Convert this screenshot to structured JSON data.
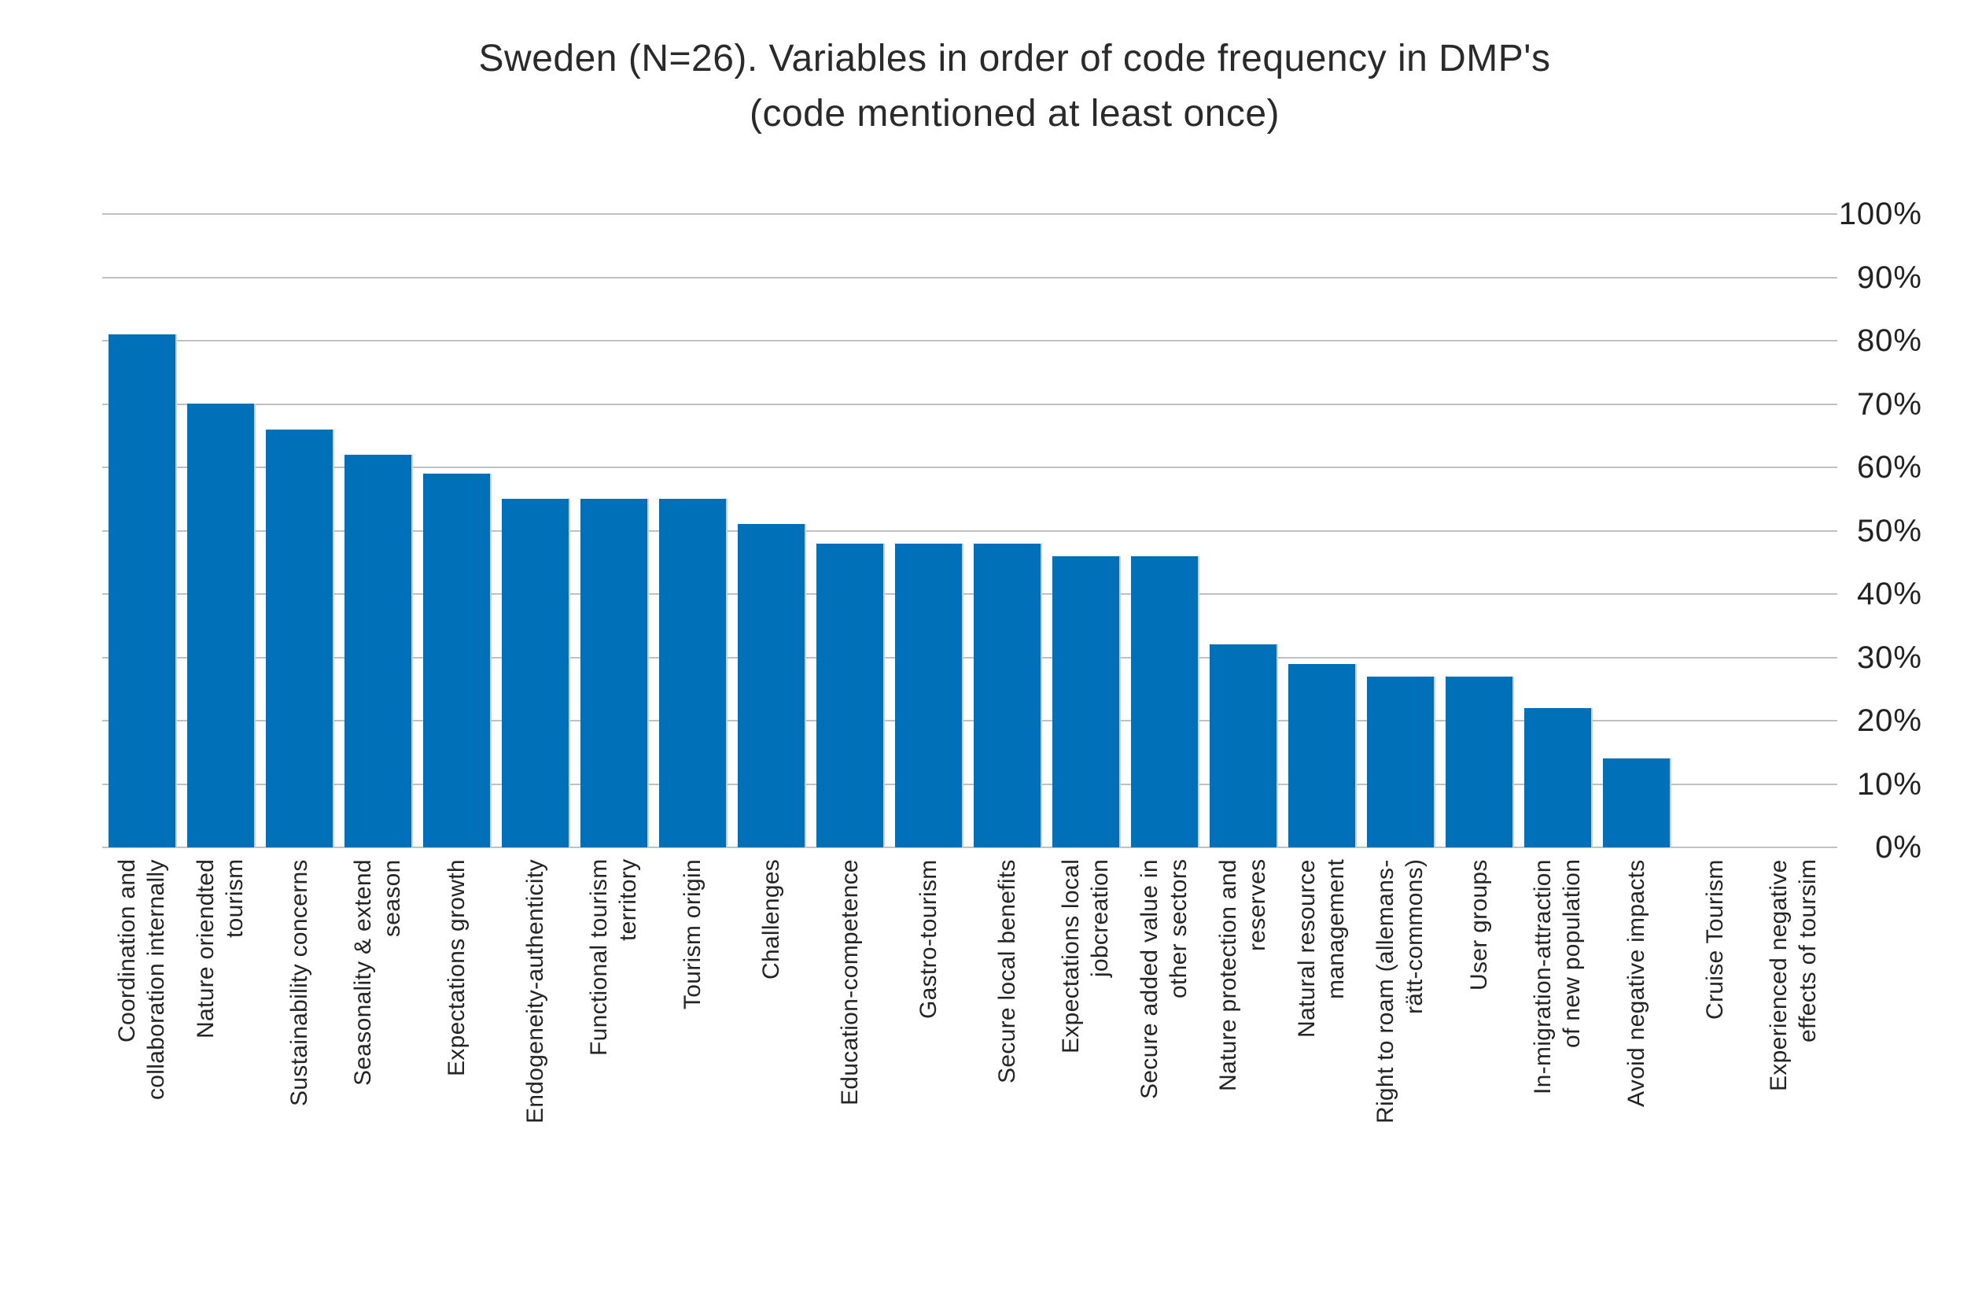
{
  "title": {
    "line1": "Sweden (N=26). Variables in order of code frequency in DMP's",
    "line2": "(code mentioned at least once)"
  },
  "y_axis": {
    "tick_labels": [
      "100%",
      "90%",
      "80%",
      "70%",
      "60%",
      "50%",
      "40%",
      "30%",
      "20%",
      "10%",
      "0%"
    ]
  },
  "chart_data": {
    "type": "bar",
    "title": "Sweden (N=26). Variables in order of code frequency in DMP's (code mentioned at least once)",
    "categories": [
      "Coordination and\ncollaboration internally",
      "Nature oriendted\ntourism",
      "Sustainability concerns",
      "Seasonality & extend\nseason",
      "Expectations growth",
      "Endogeneity-authenticity",
      "Functional tourism\nterritory",
      "Tourism origin",
      "Challenges",
      "Education-competence",
      "Gastro-tourism",
      "Secure local benefits",
      "Expectations local\njobcreation",
      "Secure added value in\nother sectors",
      "Nature protection and\nreserves",
      "Natural resource\nmanagement",
      "Right to roam (allemans-\nrätt-commons)",
      "User groups",
      "In-migration-attraction\nof new population",
      "Avoid negative impacts",
      "Cruise Tourism",
      "Experienced negative\neffects of toursim"
    ],
    "values": [
      81,
      70,
      66,
      62,
      59,
      55,
      55,
      55,
      51,
      48,
      48,
      48,
      46,
      46,
      32,
      29,
      27,
      27,
      22,
      14,
      0,
      0
    ],
    "unit": "%",
    "xlabel": "",
    "ylabel": "",
    "ylim": [
      0,
      100
    ],
    "ytick_step": 10,
    "ytick_labels": [
      "100%",
      "90%",
      "80%",
      "70%",
      "60%",
      "50%",
      "40%",
      "30%",
      "20%",
      "10%",
      "0%"
    ],
    "grid": true,
    "legend": "none",
    "bar_color": "#0070b8",
    "gridline_color": "#c1c1c1",
    "text_color": "#242424",
    "background": "#ffffff"
  }
}
